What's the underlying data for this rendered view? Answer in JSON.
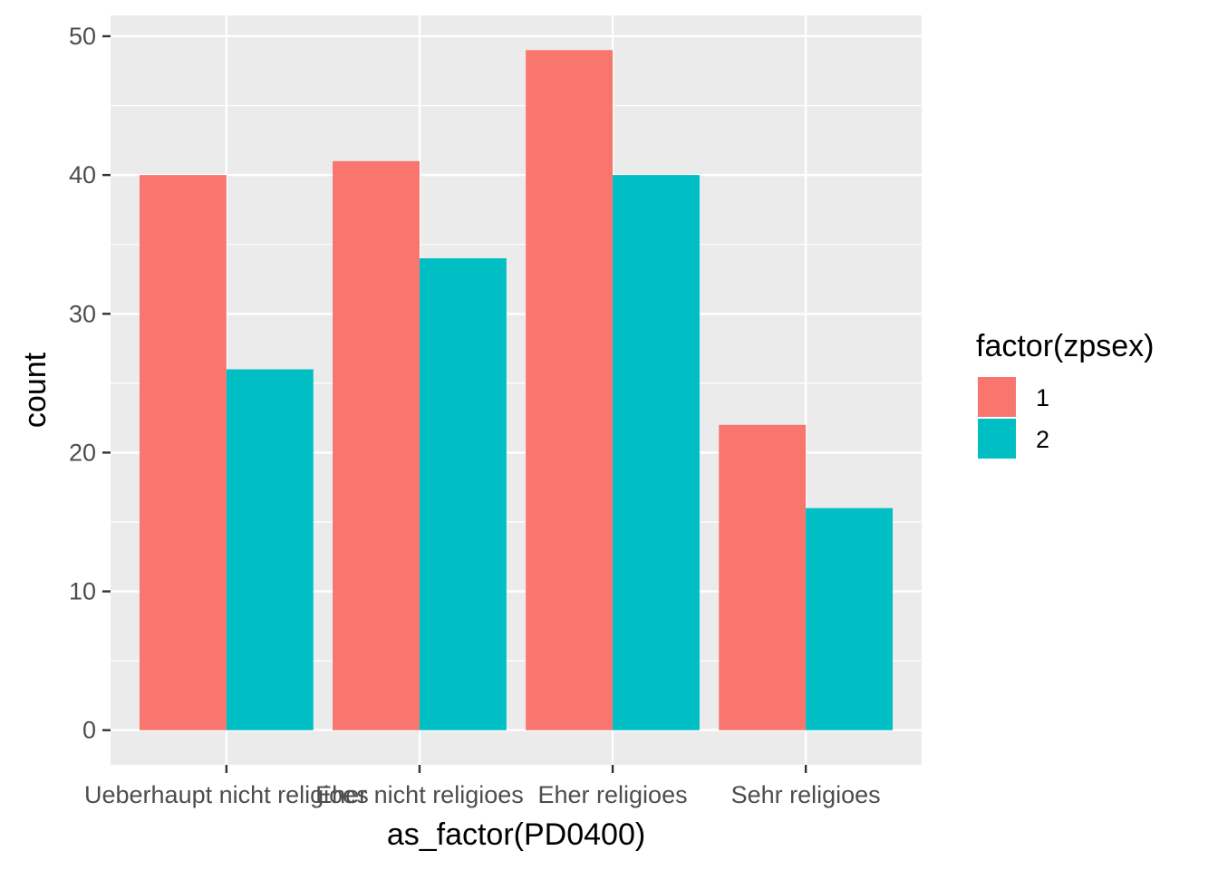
{
  "chart_data": {
    "type": "bar",
    "title": "",
    "xlabel": "as_factor(PD0400)",
    "ylabel": "count",
    "categories": [
      "Ueberhaupt nicht religioes",
      "Eher nicht religioes",
      "Eher religioes",
      "Sehr religioes"
    ],
    "series": [
      {
        "name": "1",
        "color": "#F8766D",
        "values": [
          40,
          41,
          49,
          22
        ]
      },
      {
        "name": "2",
        "color": "#00BFC4",
        "values": [
          26,
          34,
          40,
          16
        ]
      }
    ],
    "y_ticks": [
      0,
      10,
      20,
      30,
      40,
      50
    ],
    "ylim": [
      -2.5,
      51.5
    ],
    "grid": true,
    "legend": {
      "title": "factor(zpsex)",
      "position": "right"
    },
    "panel_background": "#EBEBEB",
    "grid_color": "#FFFFFF"
  }
}
